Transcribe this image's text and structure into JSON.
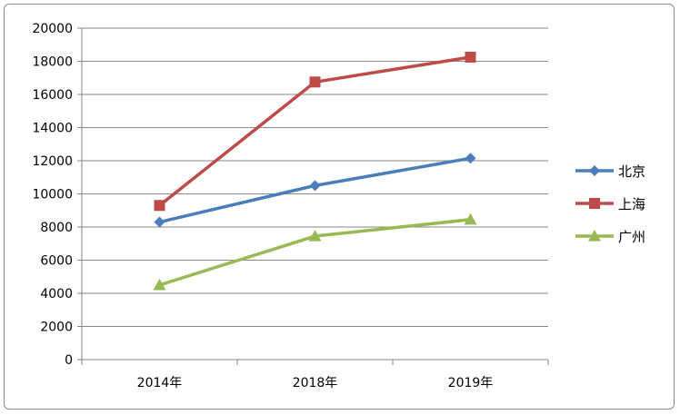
{
  "chart_data": {
    "type": "line",
    "categories": [
      "2014年",
      "2018年",
      "2019年"
    ],
    "series": [
      {
        "name": "北京",
        "values": [
          8300,
          10500,
          12150
        ],
        "color": "#4a7ebb",
        "marker": "diamond"
      },
      {
        "name": "上海",
        "values": [
          9300,
          16750,
          18250
        ],
        "color": "#be4b48",
        "marker": "square"
      },
      {
        "name": "广州",
        "values": [
          4500,
          7450,
          8450
        ],
        "color": "#98b954",
        "marker": "triangle"
      }
    ],
    "ylim": [
      0,
      20000
    ],
    "yticks": [
      0,
      2000,
      4000,
      6000,
      8000,
      10000,
      12000,
      14000,
      16000,
      18000,
      20000
    ],
    "grid": "horizontal",
    "legend": "right"
  }
}
